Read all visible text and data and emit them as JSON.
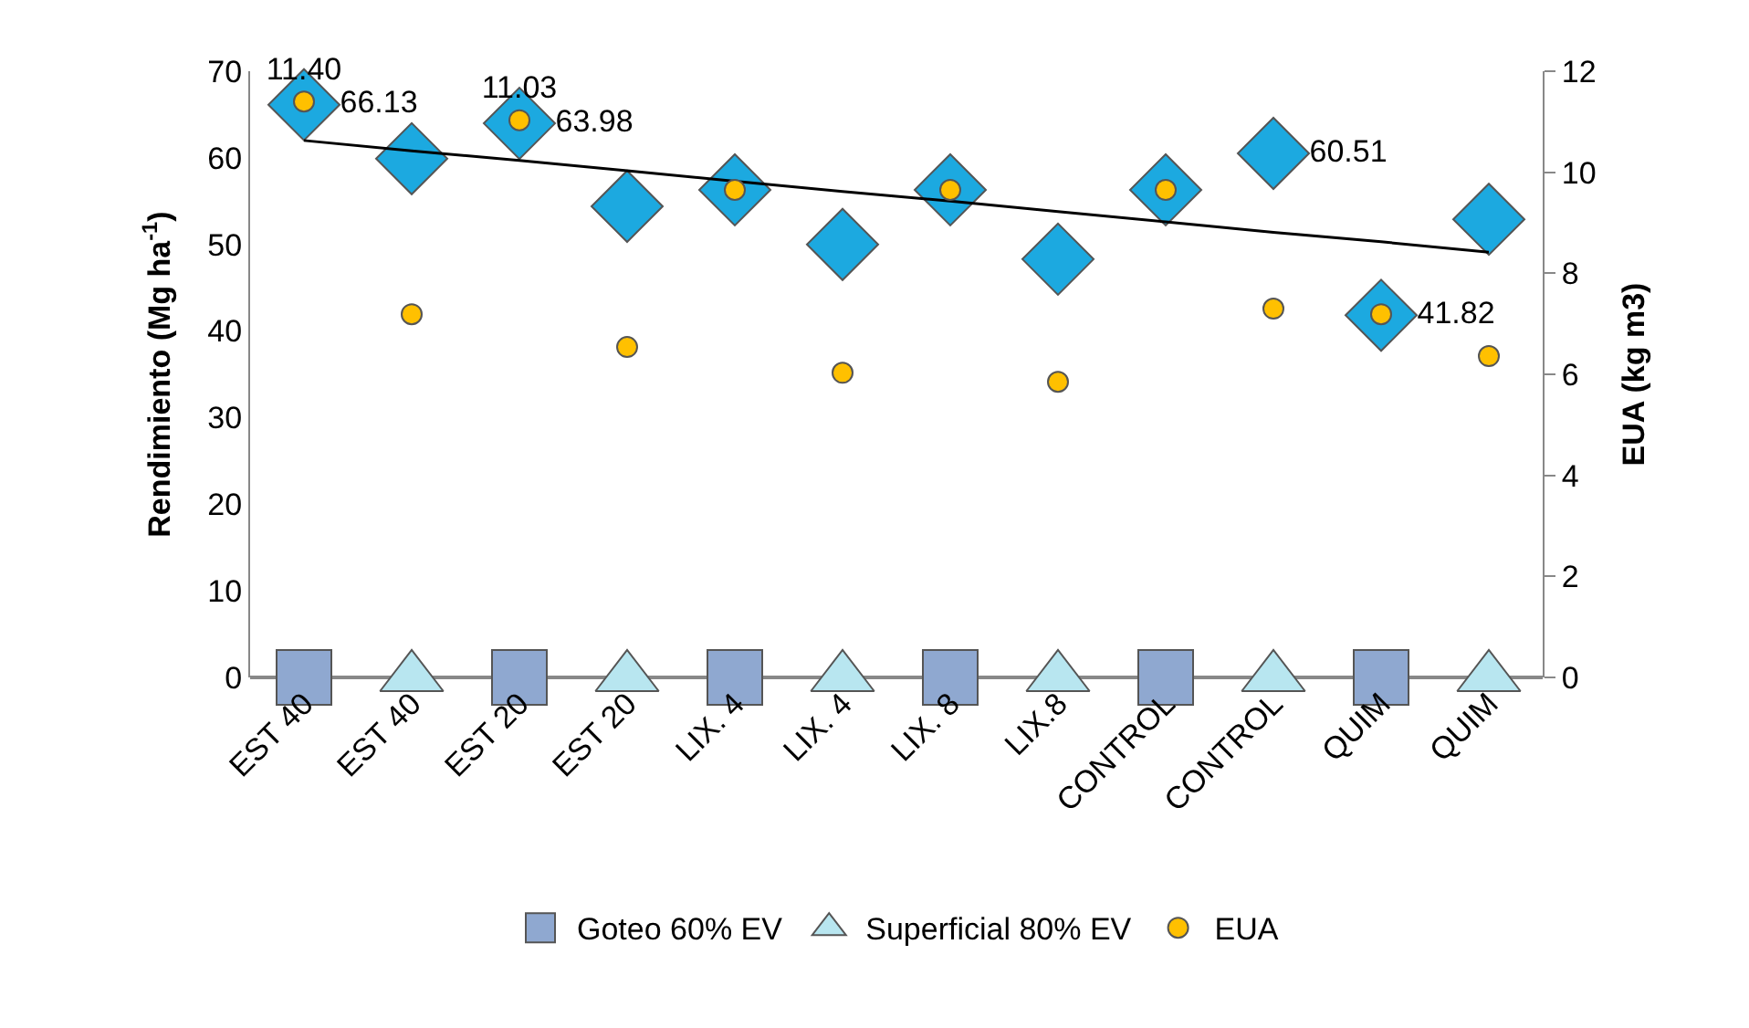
{
  "chart_data": {
    "type": "scatter",
    "categories": [
      "EST 40",
      "EST 40",
      "EST 20",
      "EST 20",
      "LIX. 4",
      "LIX. 4",
      "LIX. 8",
      "LIX.8",
      "CONTROL",
      "CONTROL",
      "QUIM",
      "QUIM"
    ],
    "ylabel": "Rendimiento (Mg ha$^{-1}$)",
    "y2label": "EUA (kg m3)",
    "ylim": [
      0,
      70
    ],
    "yticks": [
      0,
      10,
      20,
      30,
      40,
      50,
      60,
      70
    ],
    "y2lim": [
      0,
      12
    ],
    "y2ticks": [
      0,
      2,
      4,
      6,
      8,
      10,
      12
    ],
    "legend": "bottom",
    "series": [
      {
        "color": "#1ca9e0",
        "marker": "diamond",
        "values": [
          66.13,
          59.9,
          63.98,
          54.4,
          56.3,
          50.0,
          56.3,
          48.3,
          56.3,
          60.51,
          41.82,
          52.9
        ],
        "value_labels": [
          "66.13",
          null,
          "63.98",
          null,
          null,
          null,
          null,
          null,
          null,
          "60.51",
          "41.82",
          null
        ]
      },
      {
        "type": "line",
        "color": "#000000",
        "marker": "none",
        "values": [
          62.0,
          60.8,
          59.7,
          58.5,
          57.3,
          56.1,
          55.0,
          53.8,
          52.6,
          51.4,
          50.3,
          49.1
        ]
      },
      {
        "name": "Goteo 60% EV",
        "color": "#8fa8d0",
        "marker": "square",
        "values": [
          0,
          null,
          0,
          null,
          0,
          null,
          0,
          null,
          0,
          null,
          0,
          null
        ]
      },
      {
        "name": "Superficial 80% EV",
        "color": "#b8e6f0",
        "marker": "triangle",
        "values": [
          null,
          0,
          null,
          0,
          null,
          0,
          null,
          0,
          null,
          0,
          null,
          0
        ]
      },
      {
        "name": "EUA",
        "color": "#ffc000",
        "marker": "circle",
        "axis": "y2",
        "values": [
          11.4,
          7.19,
          11.03,
          6.54,
          9.65,
          6.03,
          9.65,
          5.85,
          9.65,
          7.3,
          7.19,
          6.36
        ],
        "value_labels": [
          "11.40",
          null,
          "11.03",
          null,
          null,
          null,
          null,
          null,
          null,
          null,
          null,
          null
        ]
      }
    ]
  }
}
